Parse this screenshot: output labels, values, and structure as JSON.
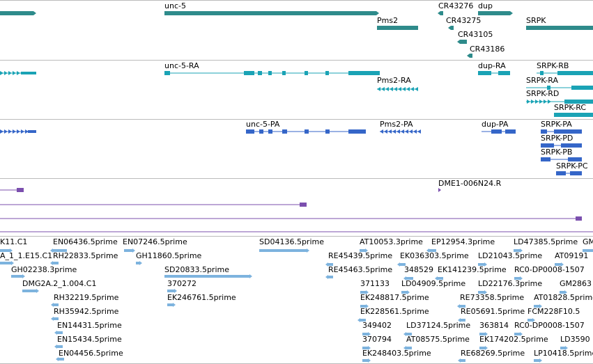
{
  "colors": {
    "gene": "#2e8b8b",
    "flybase": "#1aa3b5",
    "protein": "#3566c8",
    "cdna": "#7b4fae",
    "est": "#7db3de",
    "separator": "#bbbbbb"
  },
  "tracks": [
    {
      "name": "gene-track",
      "color": "gene"
    },
    {
      "name": "transcript-track",
      "color": "flybase"
    },
    {
      "name": "protein-track",
      "color": "protein"
    },
    {
      "name": "cdna-track",
      "color": "cdna"
    },
    {
      "name": "est-track",
      "color": "est"
    }
  ],
  "genes": [
    "unc-5",
    "Pms2",
    "CR43276",
    "dup",
    "CR43275",
    "SRPK",
    "CR43105",
    "CR43186"
  ],
  "transcripts": [
    "unc-5-RA",
    "Pms2-RA",
    "dup-RA",
    "SRPK-RB",
    "SRPK-RA",
    "SRPK-RD",
    "SRPK-RC"
  ],
  "proteins": [
    "unc-5-PA",
    "Pms2-PA",
    "dup-PA",
    "SRPK-PA",
    "SRPK-PD",
    "SRPK-PB",
    "SRPK-PC"
  ],
  "cdna": [
    "DME1-006N24.R"
  ],
  "ests": [
    "K11.C1",
    "EN06436.5prime",
    "EN07246.5prime",
    "SD04136.5prime",
    "AT10053.3prime",
    "EP12954.3prime",
    "LD47385.5prime",
    "GM",
    "A_1_1.E15.C1",
    "RH22833.5prime",
    "GH11860.5prime",
    "RE45439.5prime",
    "EK036303.5prime",
    "LD21043.5prime",
    "AT09191",
    "GH02238.3prime",
    "SD20833.5prime",
    "RE45463.5prime",
    "348529",
    "EK141239.5prime",
    "RC0-DP0008-1507",
    "DMG2A.2_1.004.C1",
    "370272",
    "371133",
    "LD04909.5prime",
    "LD22176.3prime",
    "GM2863",
    "RH32219.5prime",
    "EK246761.5prime",
    "EK248817.5prime",
    "RE73358.5prime",
    "AT01828.5prime",
    "RH35942.5prime",
    "EK228561.5prime",
    "RE05691.5prime",
    "FCM228F10.5",
    "EN14431.5prime",
    "349402",
    "LD37124.5prime",
    "363814",
    "RC0-DP0008-1507",
    "EN15434.5prime",
    "370794",
    "AT08575.5prime",
    "EK174202.5prime",
    "LD3590",
    "EN04456.5prime",
    "EK248403.5prime",
    "RE68269.5prime",
    "LP10418.5prime"
  ]
}
